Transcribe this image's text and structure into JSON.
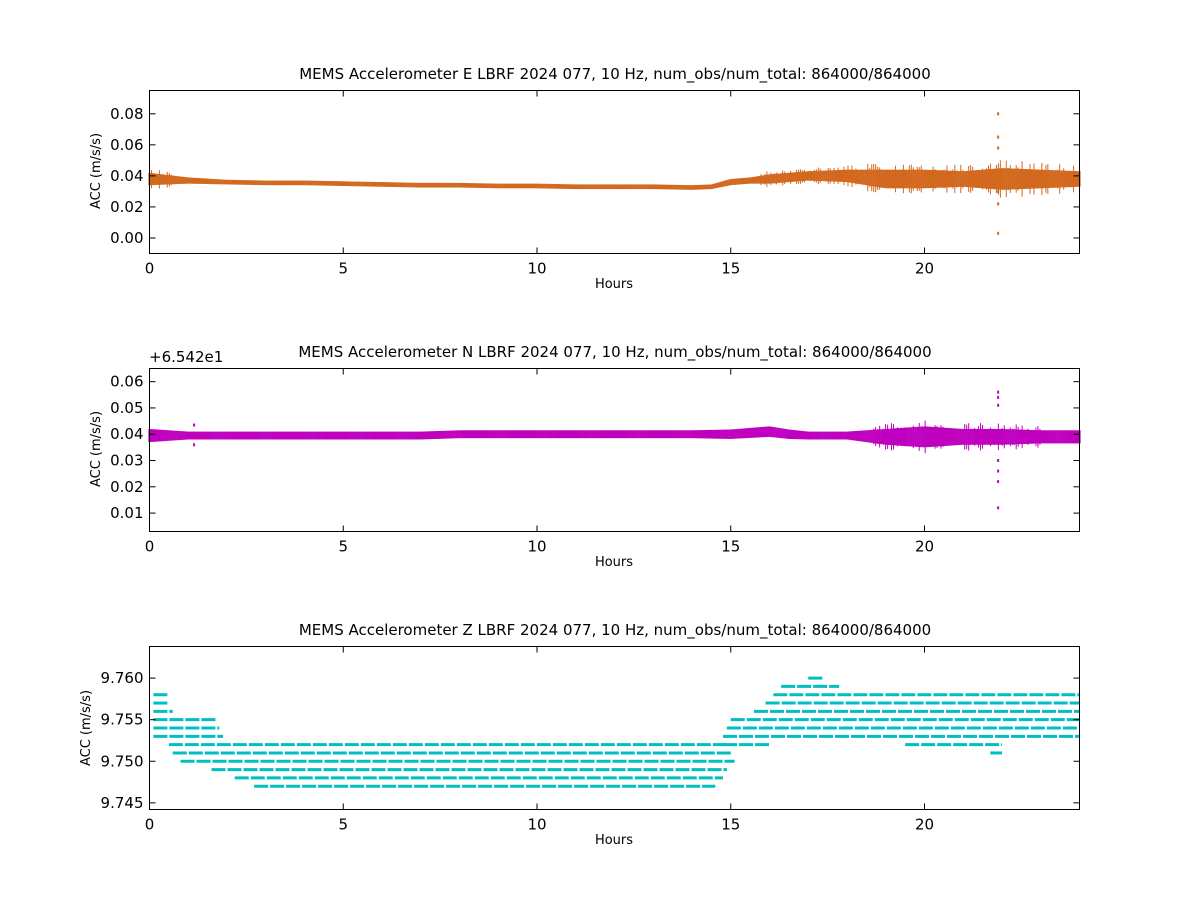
{
  "chart_data": [
    {
      "type": "scatter",
      "title": "MEMS Accelerometer E LBRF 2024 077, 10 Hz, num_obs/num_total: 864000/864000",
      "xlabel": "Hours",
      "ylabel": "ACC (m/s/s)",
      "xlim": [
        0,
        24
      ],
      "ylim": [
        -0.01,
        0.095
      ],
      "xticks": [
        "0",
        "5",
        "10",
        "15",
        "20"
      ],
      "yticks": [
        "0.00",
        "0.02",
        "0.04",
        "0.06",
        "0.08"
      ],
      "offset_text": "",
      "color": "#d2691e",
      "series": [
        {
          "x": [
            0,
            1,
            2,
            3,
            4,
            5,
            6,
            7,
            8,
            9,
            10,
            11,
            12,
            13,
            14,
            14.5,
            15,
            15.5,
            16,
            17,
            18,
            19,
            20,
            21,
            22,
            23,
            24
          ],
          "y": [
            0.038,
            0.037,
            0.036,
            0.0355,
            0.0355,
            0.035,
            0.0345,
            0.034,
            0.034,
            0.0335,
            0.0335,
            0.033,
            0.033,
            0.033,
            0.0325,
            0.033,
            0.036,
            0.037,
            0.038,
            0.04,
            0.04,
            0.038,
            0.038,
            0.038,
            0.038,
            0.038,
            0.038
          ],
          "band": [
            0.004,
            0.002,
            0.0015,
            0.0015,
            0.0015,
            0.0015,
            0.0015,
            0.0015,
            0.0015,
            0.0015,
            0.0015,
            0.0015,
            0.0015,
            0.0015,
            0.0015,
            0.0015,
            0.002,
            0.002,
            0.003,
            0.003,
            0.004,
            0.006,
            0.006,
            0.005,
            0.007,
            0.006,
            0.005
          ]
        }
      ],
      "outliers": [
        {
          "x": 21.9,
          "y": 0.08
        },
        {
          "x": 21.9,
          "y": 0.065
        },
        {
          "x": 21.9,
          "y": 0.058
        },
        {
          "x": 21.9,
          "y": 0.03
        },
        {
          "x": 21.9,
          "y": 0.022
        },
        {
          "x": 21.9,
          "y": 0.003
        }
      ]
    },
    {
      "type": "scatter",
      "title": "MEMS Accelerometer N LBRF 2024 077, 10 Hz, num_obs/num_total: 864000/864000",
      "xlabel": "Hours",
      "ylabel": "ACC (m/s/s)",
      "xlim": [
        0,
        24
      ],
      "ylim": [
        0.003,
        0.065
      ],
      "xticks": [
        "0",
        "5",
        "10",
        "15",
        "20"
      ],
      "yticks": [
        "0.01",
        "0.02",
        "0.03",
        "0.04",
        "0.05",
        "0.06"
      ],
      "offset_text": "+6.542e1",
      "color": "#bf00bf",
      "series": [
        {
          "x": [
            0,
            1,
            2,
            3,
            4,
            5,
            6,
            7,
            8,
            9,
            10,
            11,
            12,
            13,
            14,
            15,
            16,
            16.5,
            17,
            18,
            19,
            20,
            21,
            22,
            23,
            24
          ],
          "y": [
            0.0395,
            0.0395,
            0.0395,
            0.0395,
            0.0395,
            0.0395,
            0.0395,
            0.0395,
            0.04,
            0.04,
            0.04,
            0.04,
            0.04,
            0.04,
            0.04,
            0.04,
            0.041,
            0.04,
            0.0395,
            0.0395,
            0.039,
            0.039,
            0.039,
            0.039,
            0.039,
            0.039
          ],
          "band": [
            0.0025,
            0.0015,
            0.0015,
            0.0015,
            0.0015,
            0.0015,
            0.0015,
            0.0015,
            0.0015,
            0.0015,
            0.0015,
            0.0015,
            0.0015,
            0.0015,
            0.0015,
            0.0018,
            0.002,
            0.0018,
            0.0015,
            0.0015,
            0.003,
            0.004,
            0.003,
            0.003,
            0.0025,
            0.0025
          ]
        }
      ],
      "outliers": [
        {
          "x": 1.15,
          "y": 0.0435
        },
        {
          "x": 1.15,
          "y": 0.036
        },
        {
          "x": 21.9,
          "y": 0.056
        },
        {
          "x": 21.9,
          "y": 0.054
        },
        {
          "x": 21.9,
          "y": 0.051
        },
        {
          "x": 21.9,
          "y": 0.03
        },
        {
          "x": 21.9,
          "y": 0.026
        },
        {
          "x": 21.9,
          "y": 0.022
        },
        {
          "x": 21.9,
          "y": 0.012
        }
      ]
    },
    {
      "type": "scatter",
      "title": "MEMS Accelerometer Z LBRF 2024 077, 10 Hz, num_obs/num_total: 864000/864000",
      "xlabel": "Hours",
      "ylabel": "ACC (m/s/s)",
      "xlim": [
        0,
        24
      ],
      "ylim": [
        9.7442,
        9.7638
      ],
      "xticks": [
        "0",
        "5",
        "10",
        "15",
        "20"
      ],
      "yticks": [
        "9.745",
        "9.750",
        "9.755",
        "9.760"
      ],
      "offset_text": "",
      "color": "#00bfbf",
      "levels": [
        {
          "y": 9.758,
          "x0": 0.1,
          "x1": 0.5
        },
        {
          "y": 9.757,
          "x0": 0.1,
          "x1": 0.5
        },
        {
          "y": 9.756,
          "x0": 0.1,
          "x1": 0.6
        },
        {
          "y": 9.755,
          "x0": 0.1,
          "x1": 1.7
        },
        {
          "y": 9.754,
          "x0": 0.1,
          "x1": 1.8
        },
        {
          "y": 9.753,
          "x0": 0.1,
          "x1": 1.9
        },
        {
          "y": 9.752,
          "x0": 0.5,
          "x1": 14.9
        },
        {
          "y": 9.751,
          "x0": 0.6,
          "x1": 15.0
        },
        {
          "y": 9.75,
          "x0": 0.8,
          "x1": 15.1
        },
        {
          "y": 9.749,
          "x0": 1.6,
          "x1": 14.9
        },
        {
          "y": 9.748,
          "x0": 2.2,
          "x1": 14.8
        },
        {
          "y": 9.747,
          "x0": 2.7,
          "x1": 14.6
        },
        {
          "y": 9.754,
          "x0": 14.9,
          "x1": 24.0
        },
        {
          "y": 9.753,
          "x0": 14.8,
          "x1": 24.0
        },
        {
          "y": 9.752,
          "x0": 14.8,
          "x1": 16.0
        },
        {
          "y": 9.755,
          "x0": 15.0,
          "x1": 24.0
        },
        {
          "y": 9.756,
          "x0": 15.6,
          "x1": 24.0
        },
        {
          "y": 9.757,
          "x0": 15.9,
          "x1": 24.0
        },
        {
          "y": 9.758,
          "x0": 16.1,
          "x1": 24.0
        },
        {
          "y": 9.759,
          "x0": 16.3,
          "x1": 17.8
        },
        {
          "y": 9.76,
          "x0": 17.0,
          "x1": 17.4
        },
        {
          "y": 9.752,
          "x0": 19.5,
          "x1": 22.0
        },
        {
          "y": 9.751,
          "x0": 21.7,
          "x1": 22.0
        }
      ]
    }
  ]
}
